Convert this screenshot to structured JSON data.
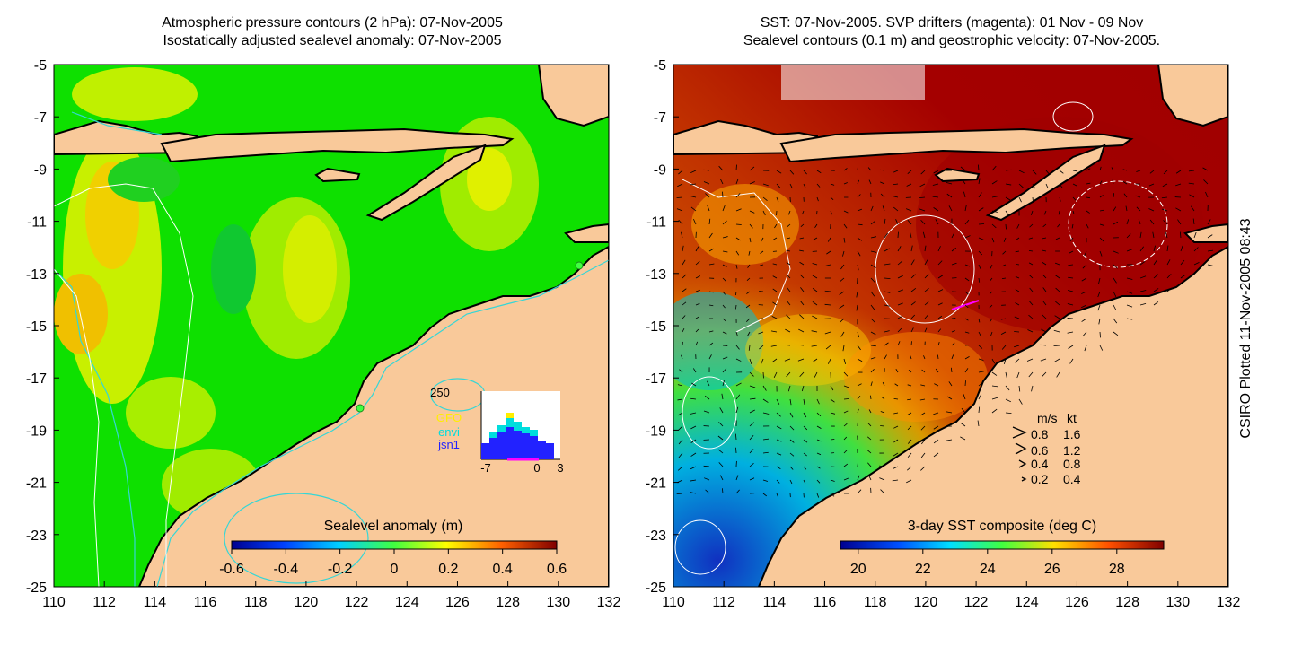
{
  "left_panel": {
    "title_line1": "Atmospheric pressure contours (2 hPa): 07-Nov-2005",
    "title_line2": "Isostatically adjusted sealevel anomaly: 07-Nov-2005",
    "colorbar_title": "Sealevel anomaly (m)",
    "colorbar_ticks": [
      "-0.6",
      "-0.4",
      "-0.2",
      "0",
      "0.2",
      "0.4",
      "0.6"
    ],
    "histogram": {
      "max_label": "250",
      "legend": [
        {
          "label": "GFO",
          "color": "#ffee00"
        },
        {
          "label": "envi",
          "color": "#00dddd"
        },
        {
          "label": "jsn1",
          "color": "#2222ff"
        }
      ],
      "x_ticks": [
        "-7",
        "0",
        "3"
      ]
    }
  },
  "right_panel": {
    "title_line1": "SST: 07-Nov-2005. SVP drifters (magenta): 01 Nov - 09 Nov",
    "title_line2": "Sealevel contours (0.1 m) and geostrophic velocity: 07-Nov-2005.",
    "colorbar_title": "3-day SST composite (deg C)",
    "colorbar_ticks": [
      "20",
      "22",
      "24",
      "26",
      "28"
    ],
    "velocity_legend": {
      "header_ms": "m/s",
      "header_kt": "kt",
      "rows": [
        {
          "ms": "0.8",
          "kt": "1.6"
        },
        {
          "ms": "0.6",
          "kt": "1.2"
        },
        {
          "ms": "0.4",
          "kt": "0.8"
        },
        {
          "ms": "0.2",
          "kt": "0.4"
        }
      ]
    }
  },
  "axes": {
    "x_ticks": [
      "110",
      "112",
      "114",
      "116",
      "118",
      "120",
      "122",
      "124",
      "126",
      "128",
      "130",
      "132"
    ],
    "y_ticks": [
      "-5",
      "-7",
      "-9",
      "-11",
      "-13",
      "-15",
      "-17",
      "-19",
      "-21",
      "-23",
      "-25"
    ],
    "x_range": [
      110,
      132
    ],
    "y_range": [
      -25,
      -5
    ]
  },
  "credit": "CSIRO Plotted 11-Nov-2005 08:43",
  "colors": {
    "land": "#f9c99a",
    "coast": "#000000",
    "bathymetry_contour": "#35d6d6",
    "pressure_contour": "#ffffff",
    "drifter": "#ff00ff"
  }
}
